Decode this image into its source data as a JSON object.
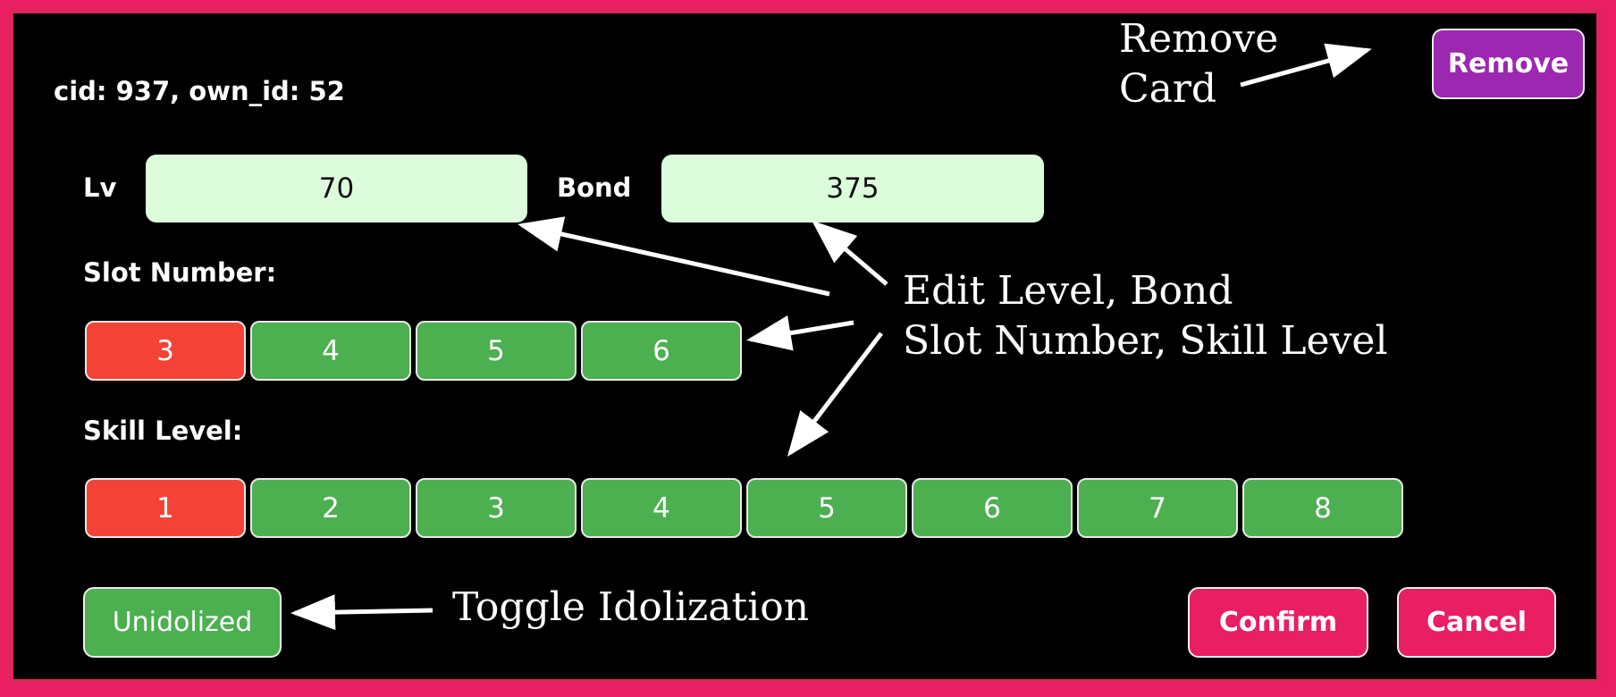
{
  "dialog": {
    "card_id_text": "cid: 937, own_id: 52",
    "remove_label": "Remove",
    "lv_label": "Lv",
    "lv_value": "70",
    "bond_label": "Bond",
    "bond_value": "375",
    "slot_label": "Slot Number:",
    "slot_options": [
      {
        "label": "3",
        "selected": true
      },
      {
        "label": "4",
        "selected": false
      },
      {
        "label": "5",
        "selected": false
      },
      {
        "label": "6",
        "selected": false
      }
    ],
    "skill_label": "Skill Level:",
    "skill_options": [
      {
        "label": "1",
        "selected": true
      },
      {
        "label": "2",
        "selected": false
      },
      {
        "label": "3",
        "selected": false
      },
      {
        "label": "4",
        "selected": false
      },
      {
        "label": "5",
        "selected": false
      },
      {
        "label": "6",
        "selected": false
      },
      {
        "label": "7",
        "selected": false
      },
      {
        "label": "8",
        "selected": false
      }
    ],
    "idolize_label": "Unidolized",
    "confirm_label": "Confirm",
    "cancel_label": "Cancel"
  },
  "annotations": {
    "remove_card": [
      "Remove",
      "Card"
    ],
    "edit": [
      "Edit Level, Bond",
      "Slot Number, Skill Level"
    ],
    "toggle": "Toggle Idolization"
  },
  "colors": {
    "frame": "#e91e63",
    "background": "#000000",
    "input_bg": "#dcfcdc",
    "option_green": "#4caf50",
    "option_selected": "#f44336",
    "remove_purple": "#9c27b0",
    "action_pink": "#e91e63"
  }
}
